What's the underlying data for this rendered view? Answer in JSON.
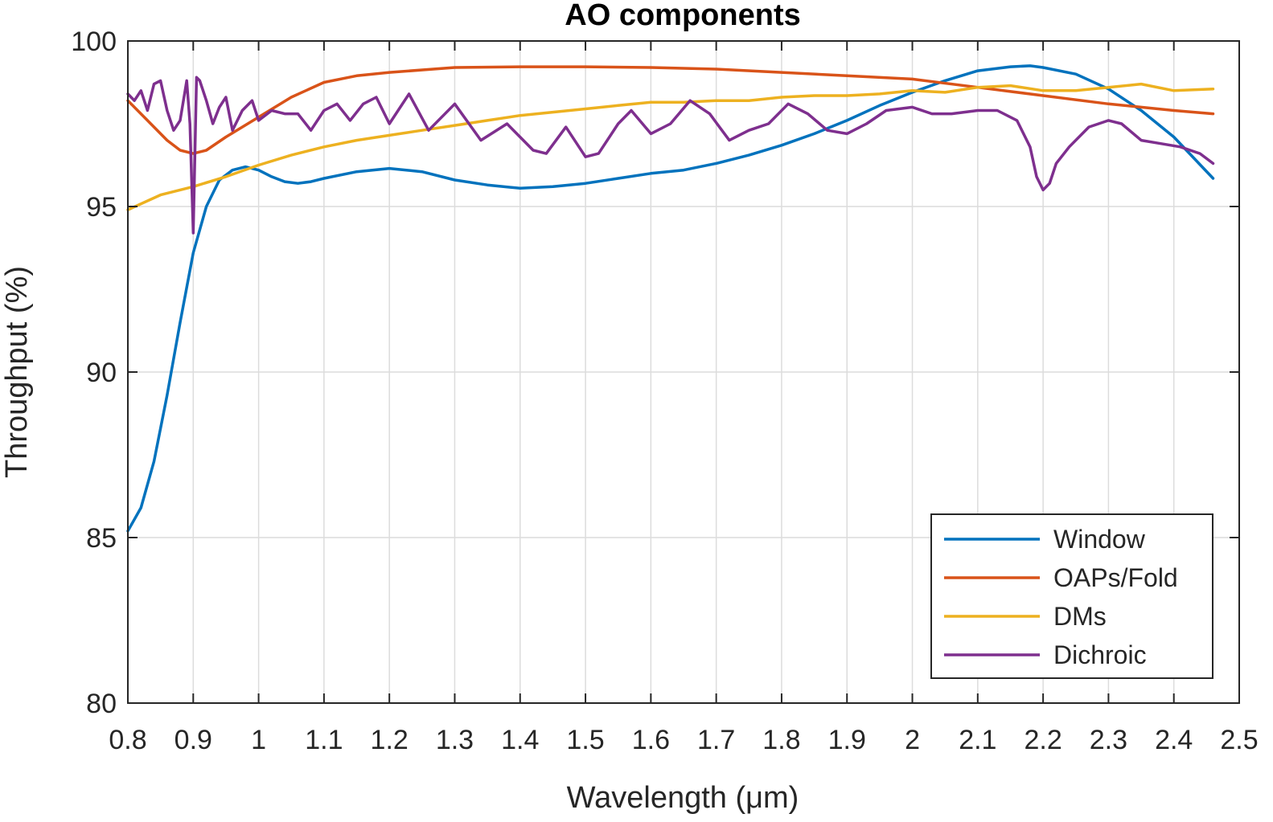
{
  "chart_data": {
    "type": "line",
    "title": "AO components",
    "xlabel": "Wavelength (μm)",
    "ylabel": "Throughput (%)",
    "xlim": [
      0.8,
      2.5
    ],
    "ylim": [
      80,
      100
    ],
    "xticks": [
      0.8,
      0.9,
      1,
      1.1,
      1.2,
      1.3,
      1.4,
      1.5,
      1.6,
      1.7,
      1.8,
      1.9,
      2,
      2.1,
      2.2,
      2.3,
      2.4,
      2.5
    ],
    "xtick_labels": [
      "0.8",
      "0.9",
      "1",
      "1.1",
      "1.2",
      "1.3",
      "1.4",
      "1.5",
      "1.6",
      "1.7",
      "1.8",
      "1.9",
      "2",
      "2.1",
      "2.2",
      "2.3",
      "2.4",
      "2.5"
    ],
    "yticks": [
      80,
      85,
      90,
      95,
      100
    ],
    "ytick_labels": [
      "80",
      "85",
      "90",
      "95",
      "100"
    ],
    "grid": true,
    "legend_position": "bottom-right",
    "series": [
      {
        "name": "Window",
        "color": "#0072BD",
        "x": [
          0.8,
          0.82,
          0.84,
          0.86,
          0.88,
          0.9,
          0.92,
          0.94,
          0.96,
          0.98,
          1.0,
          1.02,
          1.04,
          1.06,
          1.08,
          1.1,
          1.15,
          1.2,
          1.25,
          1.3,
          1.35,
          1.4,
          1.45,
          1.5,
          1.55,
          1.6,
          1.65,
          1.7,
          1.75,
          1.8,
          1.85,
          1.9,
          1.95,
          2.0,
          2.05,
          2.1,
          2.15,
          2.18,
          2.2,
          2.25,
          2.3,
          2.35,
          2.4,
          2.46
        ],
        "y": [
          85.2,
          85.9,
          87.3,
          89.3,
          91.5,
          93.6,
          95.0,
          95.8,
          96.1,
          96.2,
          96.1,
          95.9,
          95.75,
          95.7,
          95.75,
          95.85,
          96.05,
          96.15,
          96.05,
          95.8,
          95.65,
          95.55,
          95.6,
          95.7,
          95.85,
          96.0,
          96.1,
          96.3,
          96.55,
          96.85,
          97.2,
          97.6,
          98.05,
          98.45,
          98.8,
          99.1,
          99.22,
          99.25,
          99.2,
          99.0,
          98.55,
          97.9,
          97.1,
          95.85
        ]
      },
      {
        "name": "OAPs/Fold",
        "color": "#D95319",
        "x": [
          0.8,
          0.83,
          0.86,
          0.88,
          0.9,
          0.92,
          0.95,
          1.0,
          1.05,
          1.1,
          1.15,
          1.2,
          1.3,
          1.4,
          1.5,
          1.6,
          1.7,
          1.8,
          1.9,
          2.0,
          2.1,
          2.2,
          2.3,
          2.4,
          2.46
        ],
        "y": [
          98.2,
          97.6,
          97.0,
          96.7,
          96.6,
          96.7,
          97.1,
          97.7,
          98.3,
          98.75,
          98.95,
          99.05,
          99.2,
          99.22,
          99.22,
          99.2,
          99.15,
          99.05,
          98.95,
          98.85,
          98.6,
          98.35,
          98.1,
          97.9,
          97.8
        ]
      },
      {
        "name": "DMs",
        "color": "#EDB120",
        "x": [
          0.8,
          0.85,
          0.9,
          0.95,
          1.0,
          1.05,
          1.1,
          1.15,
          1.2,
          1.25,
          1.3,
          1.35,
          1.4,
          1.45,
          1.5,
          1.55,
          1.6,
          1.65,
          1.7,
          1.75,
          1.8,
          1.85,
          1.9,
          1.95,
          2.0,
          2.05,
          2.1,
          2.15,
          2.2,
          2.25,
          2.3,
          2.35,
          2.4,
          2.46
        ],
        "y": [
          94.9,
          95.35,
          95.6,
          95.9,
          96.25,
          96.55,
          96.8,
          97.0,
          97.15,
          97.3,
          97.45,
          97.6,
          97.75,
          97.85,
          97.95,
          98.05,
          98.15,
          98.15,
          98.2,
          98.2,
          98.3,
          98.35,
          98.35,
          98.4,
          98.5,
          98.45,
          98.6,
          98.65,
          98.5,
          98.5,
          98.6,
          98.7,
          98.5,
          98.55
        ]
      },
      {
        "name": "Dichroic",
        "color": "#7E2F8E",
        "x": [
          0.8,
          0.81,
          0.82,
          0.83,
          0.84,
          0.85,
          0.86,
          0.87,
          0.88,
          0.89,
          0.895,
          0.9,
          0.905,
          0.91,
          0.92,
          0.93,
          0.94,
          0.95,
          0.96,
          0.975,
          0.99,
          1.0,
          1.02,
          1.04,
          1.06,
          1.08,
          1.1,
          1.12,
          1.14,
          1.16,
          1.18,
          1.2,
          1.23,
          1.26,
          1.3,
          1.34,
          1.38,
          1.42,
          1.44,
          1.47,
          1.5,
          1.52,
          1.55,
          1.57,
          1.6,
          1.63,
          1.66,
          1.69,
          1.72,
          1.75,
          1.78,
          1.81,
          1.84,
          1.87,
          1.9,
          1.93,
          1.96,
          2.0,
          2.03,
          2.06,
          2.1,
          2.13,
          2.16,
          2.18,
          2.19,
          2.2,
          2.21,
          2.22,
          2.24,
          2.27,
          2.3,
          2.32,
          2.35,
          2.38,
          2.41,
          2.44,
          2.46
        ],
        "y": [
          98.4,
          98.2,
          98.5,
          97.9,
          98.7,
          98.8,
          97.9,
          97.3,
          97.6,
          98.8,
          97.5,
          94.2,
          98.9,
          98.8,
          98.2,
          97.5,
          98.0,
          98.3,
          97.3,
          97.9,
          98.2,
          97.6,
          97.9,
          97.8,
          97.8,
          97.3,
          97.9,
          98.1,
          97.6,
          98.1,
          98.3,
          97.5,
          98.4,
          97.3,
          98.1,
          97.0,
          97.5,
          96.7,
          96.6,
          97.4,
          96.5,
          96.6,
          97.5,
          97.9,
          97.2,
          97.5,
          98.2,
          97.8,
          97.0,
          97.3,
          97.5,
          98.1,
          97.8,
          97.3,
          97.2,
          97.5,
          97.9,
          98.0,
          97.8,
          97.8,
          97.9,
          97.9,
          97.6,
          96.8,
          95.9,
          95.5,
          95.7,
          96.3,
          96.8,
          97.4,
          97.6,
          97.5,
          97.0,
          96.9,
          96.8,
          96.6,
          96.3
        ]
      }
    ]
  }
}
